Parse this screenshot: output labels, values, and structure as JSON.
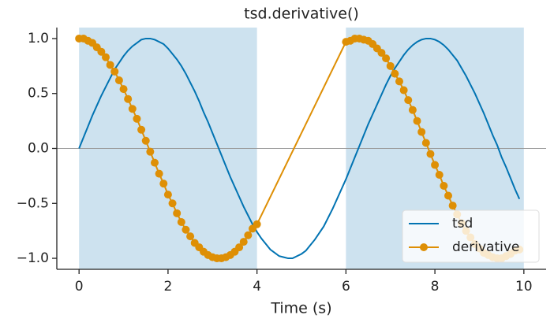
{
  "chart_data": {
    "type": "line",
    "title": "tsd.derivative()",
    "xlabel": "Time (s)",
    "xlim": [
      -0.5,
      10.5
    ],
    "ylim": [
      -1.1,
      1.1
    ],
    "xticks": [
      0,
      2,
      4,
      6,
      8,
      10
    ],
    "yticks": [
      {
        "value": -1.0,
        "label": "−1.0"
      },
      {
        "value": -0.5,
        "label": "−0.5"
      },
      {
        "value": 0.0,
        "label": "0.0"
      },
      {
        "value": 0.5,
        "label": "0.5"
      },
      {
        "value": 1.0,
        "label": "1.0"
      }
    ],
    "spans": [
      [
        0,
        4
      ],
      [
        6,
        10
      ]
    ],
    "span_color": "#cde2ef",
    "hline": 0,
    "hline_color": "#999999",
    "legend": "lower right",
    "series": [
      {
        "name": "tsd",
        "color": "#0173b2",
        "marker": false,
        "x": [
          0,
          0.1,
          0.2,
          0.3,
          0.4,
          0.5,
          0.6,
          0.7,
          0.8,
          0.9,
          1,
          1.1,
          1.2,
          1.3,
          1.4,
          1.5,
          1.6,
          1.7,
          1.8,
          1.9,
          2,
          2.1,
          2.2,
          2.3,
          2.4,
          2.5,
          2.6,
          2.7,
          2.8,
          2.9,
          3,
          3.1,
          3.2,
          3.3,
          3.4,
          3.5,
          3.6,
          3.7,
          3.8,
          3.9,
          4,
          4.1,
          4.2,
          4.3,
          4.4,
          4.5,
          4.6,
          4.7,
          4.8,
          4.9,
          5,
          5.1,
          5.2,
          5.3,
          5.4,
          5.5,
          5.6,
          5.7,
          5.8,
          5.9,
          6,
          6.1,
          6.2,
          6.3,
          6.4,
          6.5,
          6.6,
          6.7,
          6.8,
          6.9,
          7,
          7.1,
          7.2,
          7.3,
          7.4,
          7.5,
          7.6,
          7.7,
          7.8,
          7.9,
          8,
          8.1,
          8.2,
          8.3,
          8.4,
          8.5,
          8.6,
          8.7,
          8.8,
          8.9,
          9,
          9.1,
          9.2,
          9.3,
          9.4,
          9.5,
          9.6,
          9.7,
          9.8,
          9.9
        ],
        "values": [
          0,
          0.1,
          0.2,
          0.3,
          0.39,
          0.48,
          0.56,
          0.64,
          0.72,
          0.78,
          0.84,
          0.89,
          0.93,
          0.96,
          0.99,
          1,
          1,
          0.99,
          0.97,
          0.95,
          0.91,
          0.86,
          0.81,
          0.75,
          0.68,
          0.6,
          0.52,
          0.43,
          0.33,
          0.24,
          0.14,
          0.04,
          -0.06,
          -0.16,
          -0.26,
          -0.35,
          -0.44,
          -0.53,
          -0.61,
          -0.69,
          -0.76,
          -0.82,
          -0.87,
          -0.92,
          -0.95,
          -0.98,
          -0.99,
          -1,
          -1,
          -0.98,
          -0.96,
          -0.93,
          -0.88,
          -0.83,
          -0.77,
          -0.71,
          -0.63,
          -0.55,
          -0.46,
          -0.37,
          -0.28,
          -0.18,
          -0.08,
          0.02,
          0.12,
          0.22,
          0.31,
          0.4,
          0.49,
          0.58,
          0.66,
          0.73,
          0.79,
          0.85,
          0.9,
          0.94,
          0.97,
          0.99,
          1,
          1,
          0.99,
          0.97,
          0.94,
          0.9,
          0.85,
          0.8,
          0.73,
          0.66,
          0.58,
          0.5,
          0.41,
          0.32,
          0.22,
          0.12,
          0.03,
          -0.08,
          -0.17,
          -0.27,
          -0.37,
          -0.46
        ]
      },
      {
        "name": "derivative",
        "color": "#de8f05",
        "marker": true,
        "x": [
          0,
          0.1,
          0.2,
          0.3,
          0.4,
          0.5,
          0.6,
          0.7,
          0.8,
          0.9,
          1,
          1.1,
          1.2,
          1.3,
          1.4,
          1.5,
          1.6,
          1.7,
          1.8,
          1.9,
          2,
          2.1,
          2.2,
          2.3,
          2.4,
          2.5,
          2.6,
          2.7,
          2.8,
          2.9,
          3,
          3.1,
          3.2,
          3.3,
          3.4,
          3.5,
          3.6,
          3.7,
          3.8,
          3.9,
          4,
          6,
          6.1,
          6.2,
          6.3,
          6.4,
          6.5,
          6.6,
          6.7,
          6.8,
          6.9,
          7,
          7.1,
          7.2,
          7.3,
          7.4,
          7.5,
          7.6,
          7.7,
          7.8,
          7.9,
          8,
          8.1,
          8.2,
          8.3,
          8.4,
          8.5,
          8.6,
          8.7,
          8.8,
          8.9,
          9,
          9.1,
          9.2,
          9.3,
          9.4,
          9.5,
          9.6,
          9.7,
          9.8,
          9.9
        ],
        "values": [
          1,
          1,
          0.98,
          0.96,
          0.92,
          0.88,
          0.83,
          0.76,
          0.7,
          0.62,
          0.54,
          0.45,
          0.36,
          0.27,
          0.17,
          0.07,
          -0.03,
          -0.13,
          -0.23,
          -0.32,
          -0.42,
          -0.5,
          -0.59,
          -0.67,
          -0.74,
          -0.8,
          -0.86,
          -0.9,
          -0.94,
          -0.97,
          -0.99,
          -1,
          -1,
          -0.99,
          -0.97,
          -0.94,
          -0.9,
          -0.85,
          -0.79,
          -0.73,
          -0.69,
          0.97,
          0.98,
          1,
          1,
          0.99,
          0.98,
          0.95,
          0.91,
          0.87,
          0.82,
          0.75,
          0.68,
          0.61,
          0.53,
          0.44,
          0.35,
          0.25,
          0.15,
          0.05,
          -0.05,
          -0.15,
          -0.24,
          -0.34,
          -0.43,
          -0.52,
          -0.6,
          -0.68,
          -0.75,
          -0.81,
          -0.87,
          -0.91,
          -0.95,
          -0.97,
          -0.99,
          -1,
          -1,
          -0.98,
          -0.96,
          -0.93,
          -0.92
        ]
      }
    ]
  }
}
